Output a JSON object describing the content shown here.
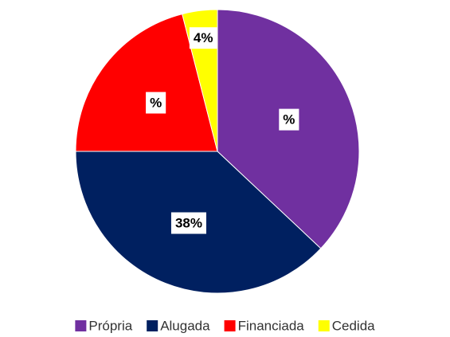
{
  "chart_data": {
    "type": "pie",
    "categories": [
      "Própria",
      "Alugada",
      "Financiada",
      "Cedida"
    ],
    "values": [
      37,
      38,
      21,
      4
    ],
    "value_labels": [
      "%",
      "38%",
      "%",
      "4%"
    ],
    "colors": [
      "#7030a0",
      "#002060",
      "#ff0000",
      "#ffff00"
    ],
    "legend": "bottom"
  }
}
